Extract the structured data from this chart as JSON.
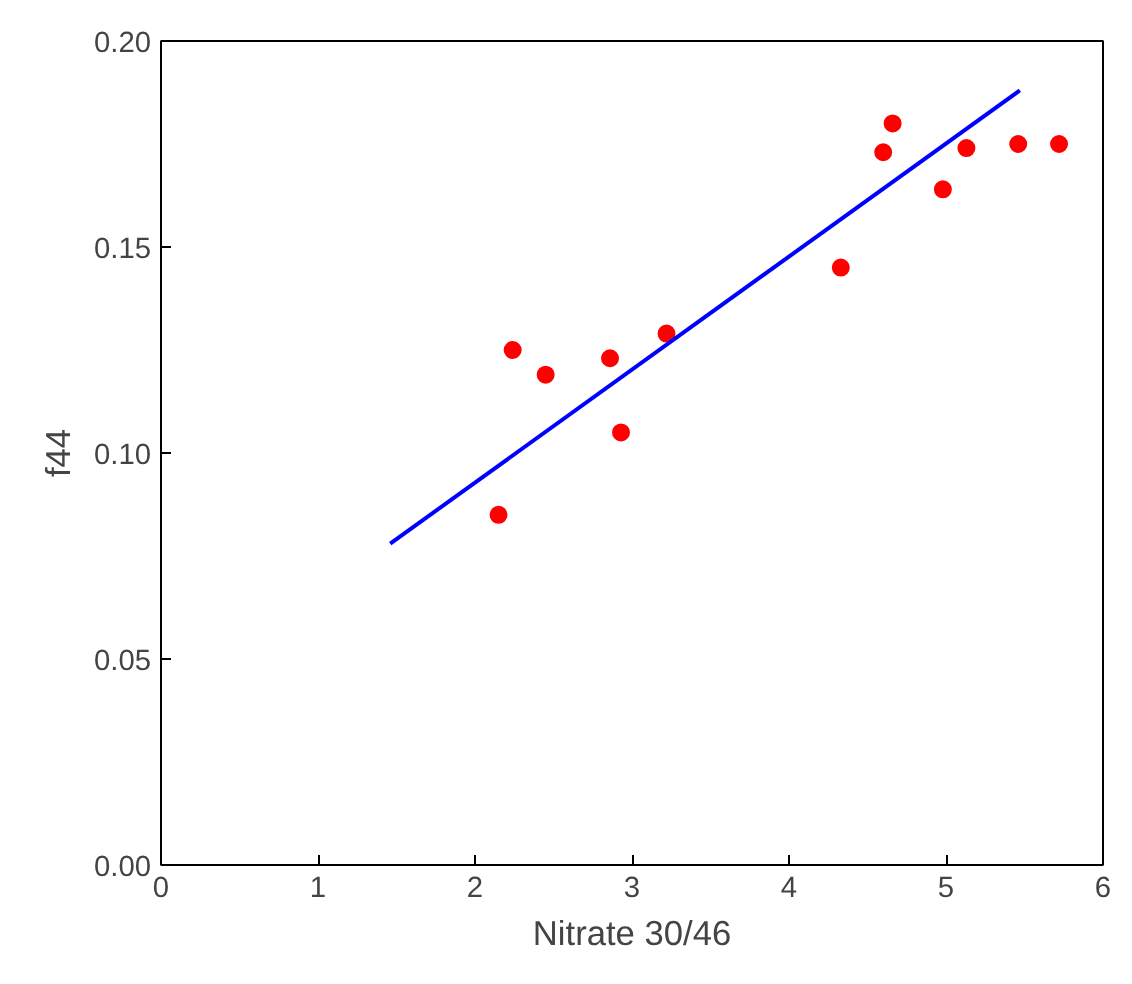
{
  "chart_data": {
    "type": "scatter",
    "xlabel": "Nitrate 30/46",
    "ylabel": "f44",
    "xlim": [
      0,
      6
    ],
    "ylim": [
      0,
      0.2
    ],
    "xticks": [
      0,
      1,
      2,
      3,
      4,
      5,
      6
    ],
    "yticks": [
      {
        "value": 0,
        "label": "0.00"
      },
      {
        "value": 0.05,
        "label": "0.05"
      },
      {
        "value": 0.1,
        "label": "0.10"
      },
      {
        "value": 0.15,
        "label": "0.15"
      },
      {
        "value": 0.2,
        "label": "0.20"
      }
    ],
    "grid": false,
    "series": [
      {
        "marker": "circle",
        "color": "#ff0000",
        "x": [
          2.15,
          2.24,
          2.45,
          2.86,
          2.93,
          3.22,
          4.33,
          4.6,
          4.66,
          4.98,
          5.13,
          5.46,
          5.72
        ],
        "values": [
          0.085,
          0.125,
          0.119,
          0.123,
          0.105,
          0.129,
          0.145,
          0.173,
          0.18,
          0.164,
          0.174,
          0.175,
          0.175
        ]
      },
      {
        "type": "line",
        "color": "#0000ff",
        "x": [
          1.46,
          5.47
        ],
        "values": [
          0.078,
          0.188
        ]
      }
    ]
  }
}
